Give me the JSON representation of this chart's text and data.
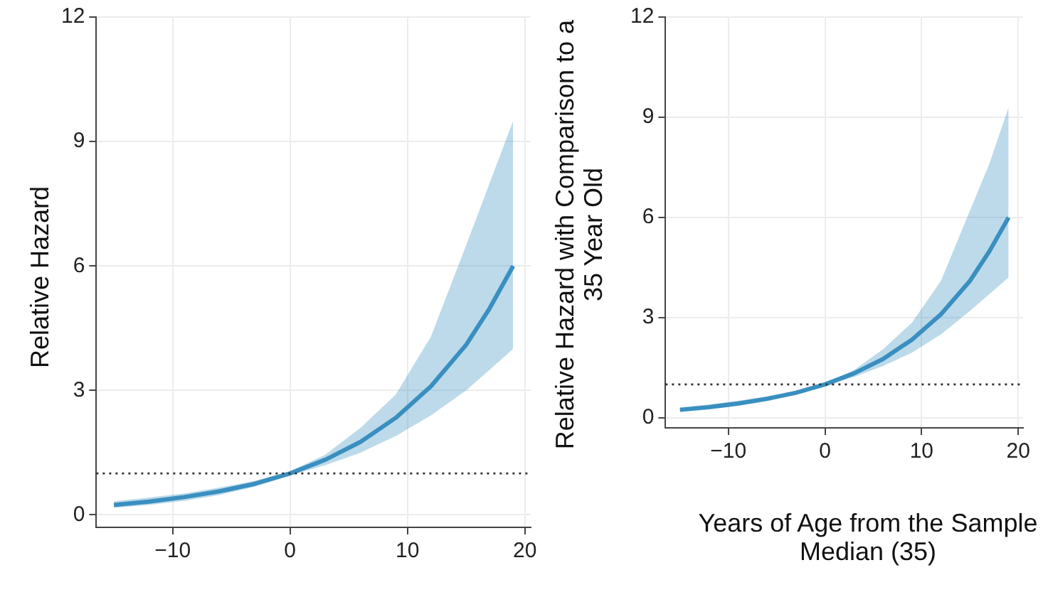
{
  "chart_data": [
    {
      "type": "line",
      "ylabel": "Relative Hazard",
      "x": [
        -15,
        -12,
        -9,
        -6,
        -3,
        0,
        3,
        6,
        9,
        12,
        15,
        17,
        19
      ],
      "series": [
        {
          "color": "#3a8fc0",
          "values": [
            0.24,
            0.32,
            0.43,
            0.57,
            0.75,
            1.0,
            1.33,
            1.76,
            2.34,
            3.1,
            4.1,
            4.98,
            6.0
          ],
          "lower": [
            0.17,
            0.24,
            0.34,
            0.48,
            0.68,
            0.95,
            1.2,
            1.5,
            1.9,
            2.4,
            3.0,
            3.5,
            4.0
          ],
          "upper": [
            0.33,
            0.42,
            0.52,
            0.66,
            0.82,
            1.05,
            1.45,
            2.1,
            2.9,
            4.3,
            6.5,
            8.0,
            9.5
          ]
        }
      ],
      "xlim": [
        -16.5,
        20.5
      ],
      "xticks": [
        {
          "value": -10,
          "label": "−10"
        },
        0,
        10,
        20
      ],
      "ylim": [
        -0.3,
        12
      ],
      "yticks": [
        0,
        3,
        6,
        9,
        12
      ],
      "grid": true,
      "marker": "none",
      "line_style": "solid",
      "ref_lines": [
        {
          "axis": "y",
          "value": 1,
          "line_style": "dotted",
          "color": "#333333"
        }
      ]
    },
    {
      "type": "line",
      "ylabel": "Relative Hazard with Comparison to a 35 Year Old",
      "xlabel": "Years of Age from the Sample Median (35)",
      "x": [
        -15,
        -12,
        -9,
        -6,
        -3,
        0,
        3,
        6,
        9,
        12,
        15,
        17,
        19
      ],
      "series": [
        {
          "color": "#3a8fc0",
          "values": [
            0.24,
            0.32,
            0.43,
            0.57,
            0.75,
            1.0,
            1.33,
            1.76,
            2.34,
            3.1,
            4.1,
            4.98,
            6.0
          ],
          "lower": [
            0.18,
            0.25,
            0.36,
            0.5,
            0.7,
            0.97,
            1.22,
            1.55,
            1.95,
            2.5,
            3.2,
            3.7,
            4.2
          ],
          "upper": [
            0.31,
            0.4,
            0.51,
            0.64,
            0.8,
            1.03,
            1.43,
            2.05,
            2.85,
            4.1,
            6.2,
            7.6,
            9.3
          ]
        }
      ],
      "xlim": [
        -16.5,
        20.5
      ],
      "xticks": [
        {
          "value": -10,
          "label": "−10"
        },
        0,
        10,
        20
      ],
      "ylim": [
        -0.3,
        12
      ],
      "yticks": [
        0,
        3,
        6,
        9,
        12
      ],
      "grid": true,
      "marker": "none",
      "line_style": "solid",
      "ref_lines": [
        {
          "axis": "y",
          "value": 1,
          "line_style": "dotted",
          "color": "#333333"
        }
      ]
    }
  ]
}
